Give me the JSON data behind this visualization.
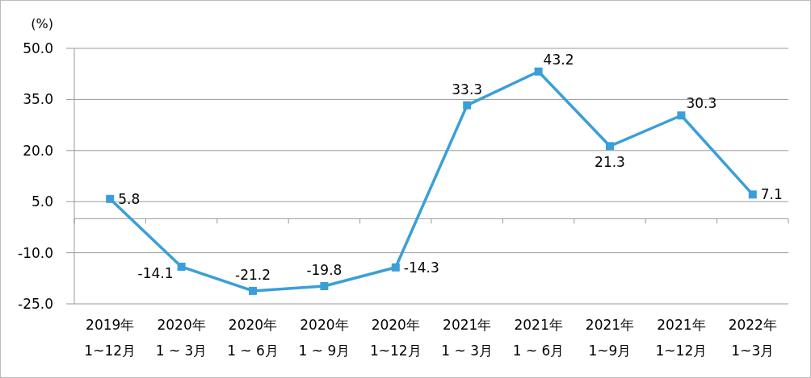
{
  "chart_data": {
    "type": "line",
    "ylabel": "(%)",
    "categories": [
      "2019年\n1~12月",
      "2020年\n1 ~ 3月",
      "2020年\n1 ~ 6月",
      "2020年\n1 ~ 9月",
      "2020年\n1~12月",
      "2021年\n1 ~ 3月",
      "2021年\n1 ~ 6月",
      "2021年\n1~9月",
      "2021年\n1~12月",
      "2022年\n1~3月"
    ],
    "series": [
      {
        "color": "#3a9fd8",
        "values": [
          5.8,
          -14.1,
          -21.2,
          -19.8,
          -14.3,
          33.3,
          43.2,
          21.3,
          30.3,
          7.1
        ]
      }
    ],
    "ylim": [
      -25,
      50
    ],
    "yticks": [
      {
        "value": 50,
        "label": "50.0"
      },
      {
        "value": 35,
        "label": "35.0"
      },
      {
        "value": 20,
        "label": "20.0"
      },
      {
        "value": 5,
        "label": "5.0"
      },
      {
        "value": -10,
        "label": "-10.0"
      },
      {
        "value": -25,
        "label": "-25.0"
      }
    ],
    "grid": "y",
    "marker": "square",
    "line_style": "solid",
    "data_labels": true
  }
}
